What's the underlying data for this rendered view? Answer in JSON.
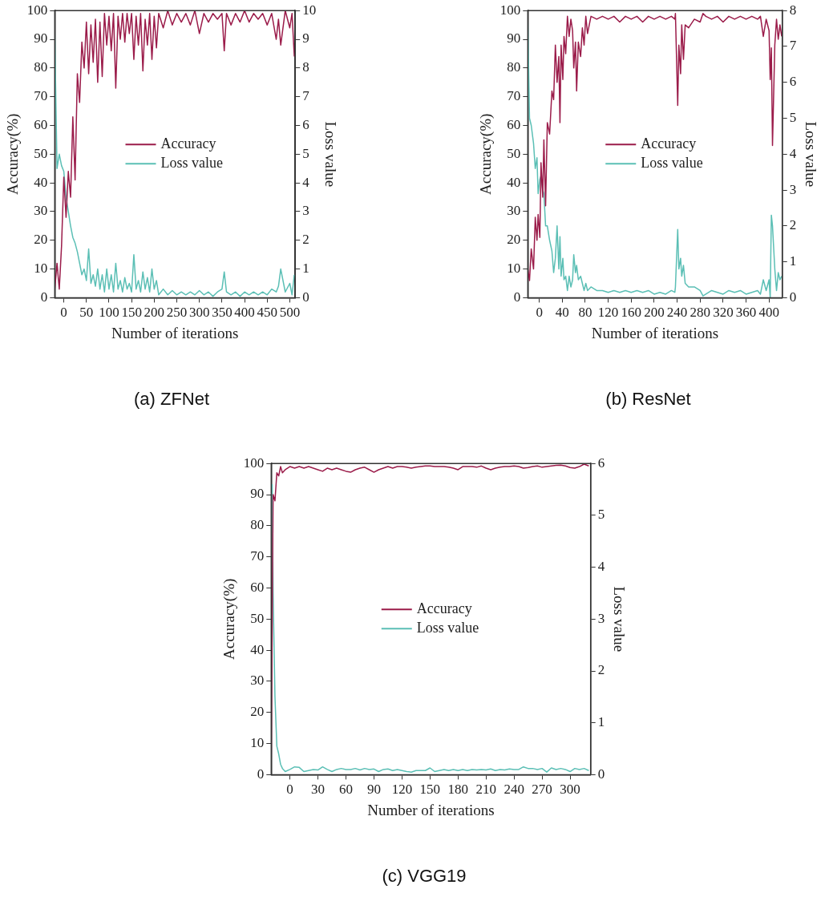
{
  "chart_data": [
    {
      "type": "line",
      "title": "(a) ZFNet",
      "xlabel": "Number of iterations",
      "ylabel": "Accuracy(%)",
      "y2label": "Loss value",
      "legend": "center",
      "x": [
        -20,
        -15,
        -10,
        -5,
        0,
        5,
        10,
        15,
        20,
        25,
        30,
        35,
        40,
        45,
        50,
        55,
        60,
        65,
        70,
        75,
        80,
        85,
        90,
        95,
        100,
        105,
        110,
        115,
        120,
        125,
        130,
        135,
        140,
        145,
        150,
        155,
        160,
        165,
        170,
        175,
        180,
        185,
        190,
        195,
        200,
        205,
        210,
        220,
        230,
        240,
        250,
        260,
        270,
        280,
        290,
        300,
        310,
        320,
        330,
        340,
        350,
        355,
        360,
        370,
        380,
        390,
        400,
        410,
        420,
        430,
        440,
        450,
        460,
        470,
        475,
        480,
        490,
        500,
        505,
        510
      ],
      "series": [
        {
          "name": "Accuracy",
          "color": "#9b1c4a",
          "values": [
            3,
            12,
            3,
            18,
            42,
            28,
            44,
            35,
            63,
            41,
            78,
            68,
            89,
            80,
            96,
            78,
            95,
            82,
            97,
            75,
            96,
            77,
            99,
            88,
            98,
            86,
            99,
            73,
            98,
            90,
            99,
            89,
            99,
            92,
            99,
            83,
            98,
            88,
            99,
            79,
            97,
            88,
            99,
            83,
            98,
            87,
            99,
            94,
            100,
            95,
            99,
            96,
            99,
            95,
            100,
            92,
            99,
            96,
            99,
            97,
            99,
            86,
            99,
            95,
            99,
            96,
            100,
            96,
            99,
            97,
            99,
            95,
            99,
            90,
            97,
            88,
            100,
            94,
            99,
            84
          ]
        },
        {
          "name": "Loss value",
          "color": "#5bbfb5",
          "axis": "y2",
          "values": [
            9.2,
            4.5,
            5,
            4.6,
            4.4,
            3.5,
            3,
            2.5,
            2.1,
            1.9,
            1.6,
            1.2,
            0.8,
            1,
            0.6,
            1.7,
            0.5,
            0.8,
            0.4,
            1,
            0.3,
            0.8,
            0.2,
            1,
            0.3,
            0.8,
            0.2,
            1.2,
            0.3,
            0.6,
            0.2,
            0.7,
            0.3,
            0.5,
            0.2,
            1.5,
            0.3,
            0.6,
            0.2,
            0.9,
            0.3,
            0.7,
            0.2,
            1,
            0.3,
            0.6,
            0.1,
            0.3,
            0.1,
            0.25,
            0.1,
            0.2,
            0.1,
            0.2,
            0.1,
            0.25,
            0.1,
            0.2,
            0.05,
            0.2,
            0.3,
            0.9,
            0.2,
            0.1,
            0.2,
            0.05,
            0.2,
            0.1,
            0.2,
            0.1,
            0.2,
            0.1,
            0.3,
            0.2,
            0.4,
            1,
            0.2,
            0.5,
            0.1,
            0.8
          ]
        }
      ],
      "xlim": [
        -20,
        512
      ],
      "xticks": [
        0,
        50,
        100,
        150,
        200,
        250,
        300,
        350,
        400,
        450,
        500
      ],
      "ylim": [
        0,
        100
      ],
      "yticks": [
        0,
        10,
        20,
        30,
        40,
        50,
        60,
        70,
        80,
        90,
        100
      ],
      "y2lim": [
        0,
        10
      ],
      "y2ticks": [
        0,
        1,
        2,
        3,
        4,
        5,
        6,
        7,
        8,
        9,
        10
      ]
    },
    {
      "type": "line",
      "title": "(b) ResNet",
      "xlabel": "Number of iterations",
      "ylabel": "Accuracy(%)",
      "y2label": "Loss value",
      "legend": "center",
      "x": [
        -20,
        -17,
        -14,
        -10,
        -7,
        -4,
        -2,
        1,
        3,
        6,
        8,
        11,
        14,
        18,
        22,
        25,
        28,
        31,
        34,
        36,
        38,
        41,
        43,
        46,
        49,
        52,
        55,
        58,
        60,
        63,
        65,
        68,
        72,
        75,
        78,
        81,
        84,
        90,
        100,
        110,
        120,
        130,
        140,
        150,
        160,
        170,
        180,
        190,
        200,
        210,
        220,
        230,
        236,
        237,
        241,
        243,
        246,
        248,
        251,
        254,
        260,
        270,
        280,
        285,
        290,
        300,
        310,
        320,
        330,
        340,
        350,
        360,
        370,
        380,
        385,
        390,
        395,
        400,
        402,
        404,
        406,
        410,
        413,
        416,
        419,
        422
      ],
      "series": [
        {
          "name": "Accuracy",
          "color": "#9b1c4a",
          "values": [
            10,
            6,
            17,
            10,
            28,
            20,
            29,
            21,
            47,
            35,
            55,
            32,
            61,
            57,
            72,
            69,
            88,
            75,
            84,
            61,
            88,
            76,
            91,
            85,
            98,
            91,
            97,
            93,
            80,
            89,
            72,
            89,
            84,
            94,
            88,
            98,
            92,
            98,
            97,
            98,
            97,
            98,
            96,
            98,
            97,
            98,
            96,
            98,
            97,
            98,
            97,
            98,
            97,
            99,
            67,
            88,
            78,
            95,
            83,
            95,
            94,
            97,
            96,
            99,
            98,
            97,
            98,
            96,
            98,
            97,
            98,
            97,
            98,
            97,
            98,
            91,
            97,
            93,
            76,
            87,
            53,
            88,
            97,
            90,
            95,
            91
          ]
        },
        {
          "name": "Loss value",
          "color": "#5bbfb5",
          "axis": "y2",
          "values": [
            7.7,
            5,
            4.8,
            4.3,
            3.6,
            3.9,
            2.9,
            3.3,
            3.4,
            3,
            2.9,
            2,
            2,
            1.6,
            1.3,
            0.7,
            1.1,
            2,
            0.8,
            1.7,
            0.6,
            1.1,
            0.5,
            0.6,
            0.2,
            0.6,
            0.3,
            0.5,
            1.2,
            0.7,
            0.9,
            0.5,
            0.6,
            0.4,
            0.2,
            0.4,
            0.2,
            0.3,
            0.2,
            0.2,
            0.15,
            0.2,
            0.15,
            0.2,
            0.15,
            0.2,
            0.15,
            0.2,
            0.1,
            0.15,
            0.1,
            0.2,
            0.15,
            0.3,
            1.9,
            0.8,
            1.1,
            0.6,
            0.9,
            0.4,
            0.3,
            0.3,
            0.2,
            0.05,
            0.1,
            0.2,
            0.15,
            0.1,
            0.2,
            0.15,
            0.2,
            0.1,
            0.15,
            0.2,
            0.1,
            0.5,
            0.2,
            0.5,
            0,
            2.3,
            2,
            0.8,
            0.2,
            0.7,
            0.5,
            0.6
          ]
        }
      ],
      "xlim": [
        -20,
        423
      ],
      "xticks": [
        0,
        40,
        80,
        120,
        160,
        200,
        240,
        280,
        320,
        360,
        400
      ],
      "ylim": [
        0,
        100
      ],
      "yticks": [
        0,
        10,
        20,
        30,
        40,
        50,
        60,
        70,
        80,
        90,
        100
      ],
      "y2lim": [
        0,
        8
      ],
      "y2ticks": [
        0,
        1,
        2,
        3,
        4,
        5,
        6,
        7,
        8
      ]
    },
    {
      "type": "line",
      "title": "(c) VGG19",
      "xlabel": "Number of iterations",
      "ylabel": "Accuracy(%)",
      "y2label": "Loss value",
      "legend": "center",
      "x": [
        -20,
        -18,
        -16,
        -14,
        -12,
        -10,
        -8,
        -5,
        0,
        5,
        10,
        15,
        20,
        25,
        30,
        35,
        40,
        45,
        50,
        55,
        60,
        65,
        70,
        75,
        80,
        85,
        90,
        95,
        100,
        105,
        110,
        115,
        120,
        125,
        130,
        135,
        140,
        145,
        150,
        155,
        160,
        165,
        170,
        175,
        180,
        185,
        190,
        195,
        200,
        205,
        210,
        215,
        220,
        225,
        230,
        235,
        240,
        245,
        250,
        255,
        260,
        265,
        270,
        275,
        280,
        285,
        290,
        295,
        300,
        305,
        310,
        315,
        320
      ],
      "series": [
        {
          "name": "Accuracy",
          "color": "#9b1c4a",
          "values": [
            5,
            90,
            88,
            97,
            96,
            99,
            97,
            98,
            99,
            98.5,
            99,
            98.5,
            99,
            98.5,
            98,
            97.5,
            98.5,
            98,
            98.5,
            98,
            97.5,
            97.2,
            98,
            98.5,
            98.8,
            98,
            97.2,
            98,
            98.5,
            99,
            98.5,
            99,
            99,
            98.8,
            98.5,
            98.8,
            99,
            99.2,
            99.2,
            99,
            99,
            99,
            98.8,
            98.5,
            98,
            99,
            99,
            99,
            98.8,
            99.2,
            98.5,
            98,
            98.5,
            98.8,
            99,
            99,
            99.2,
            99,
            98.5,
            98.7,
            99,
            99.2,
            98.8,
            99,
            99.2,
            99.4,
            99.5,
            99.2,
            98.7,
            98.5,
            99,
            99.8,
            99.2
          ]
        },
        {
          "name": "Loss value",
          "color": "#5bbfb5",
          "axis": "y2",
          "x": [
            -19,
            -18,
            -16,
            -14,
            -12,
            -10,
            -8,
            -5,
            0,
            5,
            10,
            15,
            20,
            25,
            30,
            35,
            40,
            45,
            50,
            55,
            60,
            65,
            70,
            75,
            80,
            85,
            90,
            95,
            100,
            105,
            110,
            115,
            120,
            125,
            130,
            135,
            140,
            145,
            150,
            155,
            160,
            165,
            170,
            175,
            180,
            185,
            190,
            195,
            200,
            205,
            210,
            215,
            220,
            225,
            230,
            235,
            240,
            245,
            250,
            255,
            260,
            265,
            270,
            275,
            280,
            285,
            290,
            295,
            300,
            305,
            310,
            315,
            320
          ],
          "values": [
            5.6,
            3.5,
            1.5,
            0.55,
            0.4,
            0.2,
            0.12,
            0.06,
            0.1,
            0.15,
            0.14,
            0.06,
            0.08,
            0.1,
            0.09,
            0.15,
            0.1,
            0.06,
            0.1,
            0.12,
            0.1,
            0.1,
            0.12,
            0.09,
            0.12,
            0.1,
            0.11,
            0.06,
            0.1,
            0.11,
            0.08,
            0.1,
            0.08,
            0.06,
            0.05,
            0.08,
            0.08,
            0.08,
            0.13,
            0.06,
            0.08,
            0.1,
            0.08,
            0.1,
            0.08,
            0.1,
            0.08,
            0.1,
            0.09,
            0.1,
            0.09,
            0.11,
            0.08,
            0.1,
            0.09,
            0.11,
            0.1,
            0.1,
            0.15,
            0.12,
            0.12,
            0.1,
            0.12,
            0.05,
            0.13,
            0.1,
            0.12,
            0.1,
            0.06,
            0.12,
            0.1,
            0.12,
            0.08
          ]
        }
      ],
      "xlim": [
        -20,
        322
      ],
      "xticks": [
        0,
        30,
        60,
        90,
        120,
        150,
        180,
        210,
        240,
        270,
        300
      ],
      "ylim": [
        0,
        100
      ],
      "yticks": [
        0,
        10,
        20,
        30,
        40,
        50,
        60,
        70,
        80,
        90,
        100
      ],
      "y2lim": [
        0,
        6
      ],
      "y2ticks": [
        0,
        1,
        2,
        3,
        4,
        5,
        6
      ]
    }
  ]
}
